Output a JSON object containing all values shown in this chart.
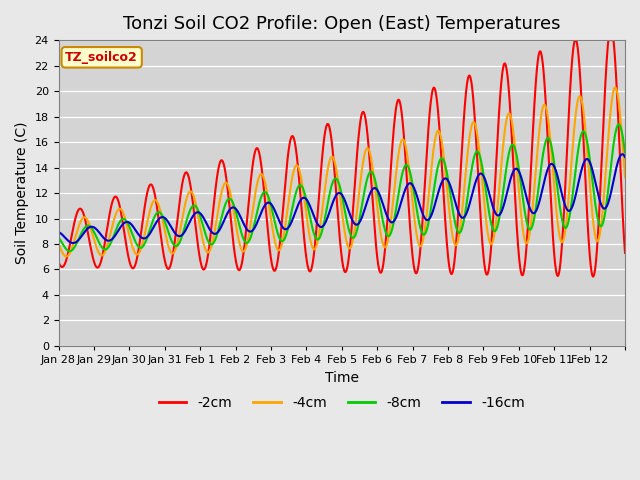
{
  "title": "Tonzi Soil CO2 Profile: Open (East) Temperatures",
  "xlabel": "Time",
  "ylabel": "Soil Temperature (C)",
  "ylim": [
    0,
    24
  ],
  "yticks": [
    0,
    2,
    4,
    6,
    8,
    10,
    12,
    14,
    16,
    18,
    20,
    22,
    24
  ],
  "legend_label": "TZ_soilco2",
  "series_labels": [
    "-2cm",
    "-4cm",
    "-8cm",
    "-16cm"
  ],
  "series_colors": [
    "#ff0000",
    "#ffa500",
    "#00cc00",
    "#0000cc"
  ],
  "background_color": "#e8e8e8",
  "plot_bg_color": "#d4d4d4",
  "title_fontsize": 13,
  "axis_fontsize": 10,
  "tick_fontsize": 8,
  "legend_fontsize": 10,
  "line_width": 1.5,
  "x_start_day": 27,
  "x_end_day": 43,
  "x_tick_positions": [
    27,
    28,
    29,
    30,
    31,
    32,
    33,
    34,
    35,
    36,
    37,
    38,
    39,
    40,
    41,
    42,
    43
  ],
  "x_tick_labels": [
    "Jan 28",
    "Jan 29",
    "Jan 30",
    "Jan 31",
    "Feb 1",
    "Feb 2",
    "Feb 3",
    "Feb 4",
    "Feb 5",
    "Feb 6",
    "Feb 7",
    "Feb 8",
    "Feb 9",
    "Feb 10",
    "Feb 11",
    "Feb 12",
    ""
  ]
}
